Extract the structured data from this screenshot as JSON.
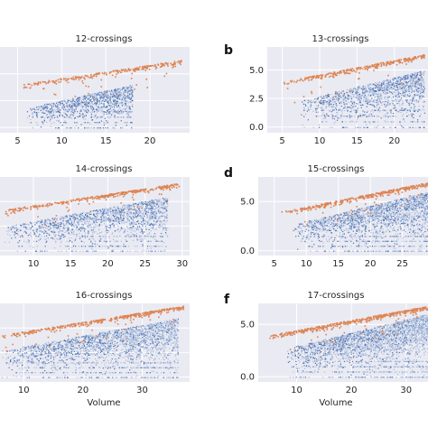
{
  "panel_titles": [
    "12-crossings",
    "13-crossings",
    "14-crossings",
    "15-crossings",
    "16-crossings",
    "17-crossings"
  ],
  "panel_letters": [
    "b",
    "d",
    "f"
  ],
  "xlabel": "Volume",
  "colors": {
    "background": "#eaeaf2",
    "grid": "#ffffff",
    "blue": "#4c72b0",
    "orange": "#dd8452"
  },
  "chart_data": [
    {
      "type": "scatter",
      "title": "12-crossings",
      "panel_label": "",
      "xlim": [
        3,
        24.5
      ],
      "ylim": [
        -0.5,
        7.5
      ],
      "xticks": [
        5,
        10,
        15,
        20
      ],
      "yticks": [],
      "xlabel": "",
      "grid": true,
      "density": 1,
      "series": [
        {
          "color": "orange",
          "points_from": [
            5,
            1.7,
            4.0
          ],
          "points_to": [
            23.5,
            6.3
          ]
        },
        {
          "color": "blue",
          "x_range": [
            6,
            18
          ],
          "y_range": [
            0,
            4.0
          ]
        }
      ]
    },
    {
      "type": "scatter",
      "title": "13-crossings",
      "panel_label": "b",
      "xlim": [
        3,
        24.5
      ],
      "ylim": [
        -0.5,
        7.0
      ],
      "xticks": [
        5,
        10,
        15,
        20
      ],
      "yticks": [
        "0.0",
        "2.5",
        "5.0"
      ],
      "ytick_values": [
        0,
        2.5,
        5
      ],
      "xlabel": "",
      "grid": true,
      "density": 2,
      "series": [
        {
          "color": "orange",
          "points_from": [
            5,
            1.7,
            4.0
          ],
          "points_to": [
            24,
            6.4
          ]
        },
        {
          "color": "blue",
          "x_range": [
            7,
            24
          ],
          "y_range": [
            0,
            5.0
          ]
        }
      ]
    },
    {
      "type": "scatter",
      "title": "14-crossings",
      "panel_label": "",
      "xlim": [
        5.5,
        31
      ],
      "ylim": [
        -0.5,
        7.5
      ],
      "xticks": [
        10,
        15,
        20,
        25,
        30
      ],
      "yticks": [],
      "xlabel": "",
      "grid": true,
      "density": 3,
      "series": [
        {
          "color": "orange",
          "points_from": [
            6,
            2.2,
            4.2
          ],
          "points_to": [
            29.5,
            6.9
          ]
        },
        {
          "color": "blue",
          "x_range": [
            6,
            28
          ],
          "y_range": [
            0,
            5.5
          ]
        }
      ]
    },
    {
      "type": "scatter",
      "title": "15-crossings",
      "panel_label": "d",
      "xlim": [
        2.5,
        29
      ],
      "ylim": [
        -0.5,
        7.5
      ],
      "xticks": [
        5,
        10,
        15,
        20,
        25
      ],
      "yticks": [
        "0.0",
        "5.0"
      ],
      "ytick_values": [
        0,
        5
      ],
      "xlabel": "",
      "grid": true,
      "density": 4,
      "series": [
        {
          "color": "orange",
          "points_from": [
            6,
            2.0,
            4.0
          ],
          "points_to": [
            29,
            7.0
          ]
        },
        {
          "color": "blue",
          "x_range": [
            8,
            29
          ],
          "y_range": [
            0,
            6.0
          ]
        }
      ]
    },
    {
      "type": "scatter",
      "title": "16-crossings",
      "panel_label": "",
      "xlim": [
        6,
        38
      ],
      "ylim": [
        -0.5,
        7.5
      ],
      "xticks": [
        10,
        20,
        30
      ],
      "yticks": [],
      "xlabel": "Volume",
      "grid": true,
      "density": 5,
      "series": [
        {
          "color": "orange",
          "points_from": [
            6,
            2.3,
            4.3
          ],
          "points_to": [
            37,
            7.3
          ]
        },
        {
          "color": "blue",
          "x_range": [
            6,
            36
          ],
          "y_range": [
            0,
            6.0
          ]
        }
      ]
    },
    {
      "type": "scatter",
      "title": "17-crossings",
      "panel_label": "f",
      "xlim": [
        3,
        34
      ],
      "ylim": [
        -0.5,
        7.0
      ],
      "xticks": [
        10,
        20,
        30
      ],
      "yticks": [
        "0.0",
        "5.0"
      ],
      "ytick_values": [
        0,
        5
      ],
      "xlabel": "Volume",
      "grid": true,
      "density": 6,
      "series": [
        {
          "color": "orange",
          "points_from": [
            5,
            2.0,
            4.0
          ],
          "points_to": [
            34,
            6.8
          ]
        },
        {
          "color": "blue",
          "x_range": [
            8,
            34
          ],
          "y_range": [
            0,
            6.0
          ]
        }
      ]
    }
  ]
}
